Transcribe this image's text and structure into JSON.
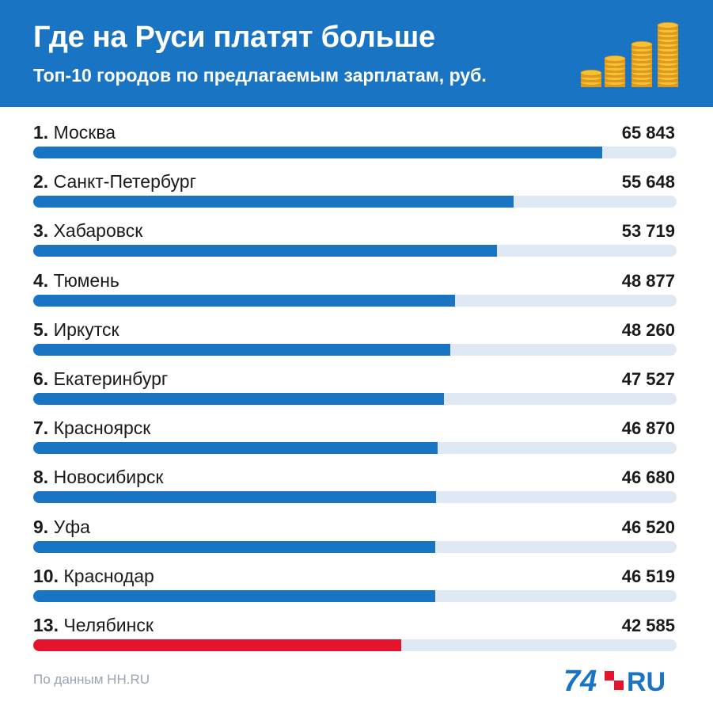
{
  "header": {
    "title": "Где на Руси платят больше",
    "subtitle": "Топ-10 городов по предлагаемым зарплатам, руб.",
    "icon": "coin-stacks-icon"
  },
  "chart_data": {
    "type": "bar",
    "orientation": "horizontal",
    "title": "Где на Руси платят больше",
    "subtitle": "Топ-10 городов по предлагаемым зарплатам, руб.",
    "xlim": [
      0,
      74500
    ],
    "rows": [
      {
        "rank": "1.",
        "city": "Москва",
        "value": 65843,
        "value_label": "65 843",
        "highlight": false
      },
      {
        "rank": "2.",
        "city": "Санкт-Петербург",
        "value": 55648,
        "value_label": "55 648",
        "highlight": false
      },
      {
        "rank": "3.",
        "city": "Хабаровск",
        "value": 53719,
        "value_label": "53 719",
        "highlight": false
      },
      {
        "rank": "4.",
        "city": "Тюмень",
        "value": 48877,
        "value_label": "48 877",
        "highlight": false
      },
      {
        "rank": "5.",
        "city": "Иркутск",
        "value": 48260,
        "value_label": "48 260",
        "highlight": false
      },
      {
        "rank": "6.",
        "city": "Екатеринбург",
        "value": 47527,
        "value_label": "47 527",
        "highlight": false
      },
      {
        "rank": "7.",
        "city": "Красноярск",
        "value": 46870,
        "value_label": "46 870",
        "highlight": false
      },
      {
        "rank": "8.",
        "city": "Новосибирск",
        "value": 46680,
        "value_label": "46 680",
        "highlight": false
      },
      {
        "rank": "9.",
        "city": "Уфа",
        "value": 46520,
        "value_label": "46 520",
        "highlight": false
      },
      {
        "rank": "10.",
        "city": "Краснодар",
        "value": 46519,
        "value_label": "46 519",
        "highlight": false
      },
      {
        "rank": "13.",
        "city": "Челябинск",
        "value": 42585,
        "value_label": "42 585",
        "highlight": true
      }
    ]
  },
  "colors": {
    "header_bg": "#1a74c4",
    "bar": "#1a74c4",
    "bar_highlight": "#e3142b",
    "track": "#dfe9f3",
    "logo_blue": "#1a74c4",
    "logo_red": "#e3142b"
  },
  "footer": {
    "source": "По данным HH.RU",
    "logo_number": "74",
    "logo_suffix": "RU"
  }
}
